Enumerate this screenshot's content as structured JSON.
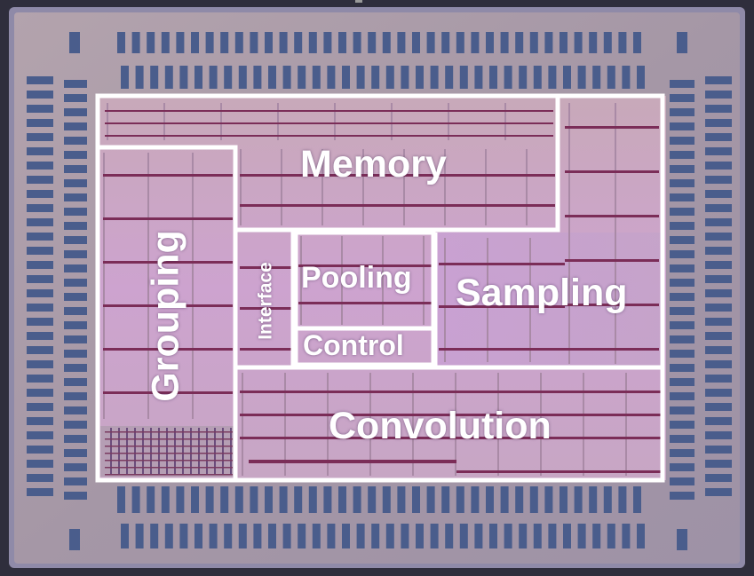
{
  "image": {
    "subject": "chip-die-micrograph"
  },
  "blocks": {
    "memory": "Memory",
    "grouping": "Grouping",
    "interface": "Interface",
    "pooling": "Pooling",
    "control": "Control",
    "sampling": "Sampling",
    "convolution": "Convolution"
  },
  "colors": {
    "die_border": "#3b3a4a",
    "die_body": "#a89aa8",
    "io_pad": "#4a5d8c",
    "core_tint": "#c9a7c9",
    "logic_tint": "#c8a0cf",
    "block_outline": "#ffffff"
  }
}
